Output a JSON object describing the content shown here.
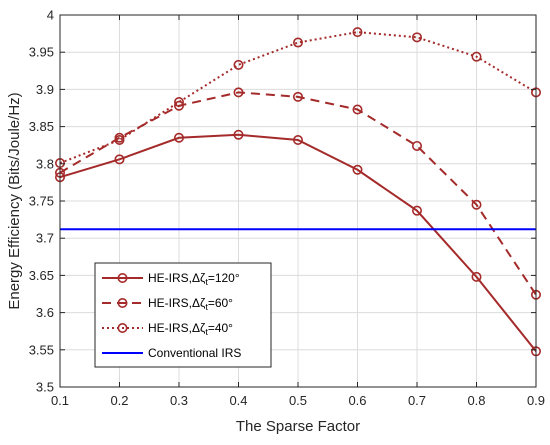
{
  "chart_data": {
    "type": "line",
    "title": "",
    "xlabel": "The Sparse Factor",
    "ylabel": "Energy Efficiency (Bits/Joule/Hz)",
    "xlim": [
      0.1,
      0.9
    ],
    "ylim": [
      3.5,
      4.0
    ],
    "x": [
      0.1,
      0.2,
      0.3,
      0.4,
      0.5,
      0.6,
      0.7,
      0.8,
      0.9
    ],
    "xticks": [
      "0.1",
      "0.2",
      "0.3",
      "0.4",
      "0.5",
      "0.6",
      "0.7",
      "0.8",
      "0.9"
    ],
    "yticks": [
      "3.5",
      "3.55",
      "3.6",
      "3.65",
      "3.7",
      "3.75",
      "3.8",
      "3.85",
      "3.9",
      "3.95",
      "4"
    ],
    "grid": true,
    "legend_position": "bottom-left",
    "series": [
      {
        "name": "HE-IRS,Δζt=120°",
        "name_base": "HE-IRS,Δζ",
        "name_sub": "t",
        "name_tail": "=120°",
        "values": [
          3.782,
          3.806,
          3.835,
          3.839,
          3.832,
          3.792,
          3.737,
          3.648,
          3.548
        ],
        "color": "#a52a2a",
        "style": "solid",
        "marker": "circle"
      },
      {
        "name": "HE-IRS,Δζt=60°",
        "name_base": "HE-IRS,Δζ",
        "name_sub": "t",
        "name_tail": "=60°",
        "values": [
          3.788,
          3.835,
          3.878,
          3.896,
          3.89,
          3.873,
          3.824,
          3.745,
          3.624
        ],
        "color": "#a52a2a",
        "style": "dashed",
        "marker": "circle"
      },
      {
        "name": "HE-IRS,Δζt=40°",
        "name_base": "HE-IRS,Δζ",
        "name_sub": "t",
        "name_tail": "=40°",
        "values": [
          3.801,
          3.832,
          3.883,
          3.933,
          3.963,
          3.977,
          3.97,
          3.944,
          3.896
        ],
        "color": "#a52a2a",
        "style": "dotted",
        "marker": "circle"
      },
      {
        "name": "Conventional IRS",
        "values": [
          3.712,
          3.712,
          3.712,
          3.712,
          3.712,
          3.712,
          3.712,
          3.712,
          3.712
        ],
        "color": "#0000ff",
        "style": "solid",
        "marker": "none"
      }
    ]
  }
}
